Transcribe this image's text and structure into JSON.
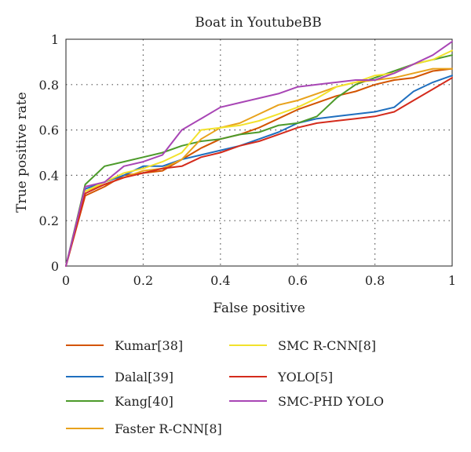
{
  "chart_data": {
    "type": "line",
    "title": "Boat in YoutubeBB",
    "xlabel": "False positive",
    "ylabel": "True positive rate",
    "xlim": [
      0,
      1
    ],
    "ylim": [
      0,
      1
    ],
    "xticks": [
      "0",
      "0.2",
      "0.4",
      "0.6",
      "0.8",
      "1"
    ],
    "yticks": [
      "0",
      "0.2",
      "0.4",
      "0.6",
      "0.8",
      "1"
    ],
    "grid": true,
    "legend_position": "bottom",
    "series": [
      {
        "name": "Kumar[38]",
        "color": "#d35400",
        "points": [
          [
            0,
            0
          ],
          [
            0.05,
            0.31
          ],
          [
            0.1,
            0.35
          ],
          [
            0.15,
            0.4
          ],
          [
            0.2,
            0.41
          ],
          [
            0.25,
            0.42
          ],
          [
            0.3,
            0.47
          ],
          [
            0.35,
            0.52
          ],
          [
            0.4,
            0.56
          ],
          [
            0.45,
            0.58
          ],
          [
            0.5,
            0.61
          ],
          [
            0.55,
            0.65
          ],
          [
            0.6,
            0.69
          ],
          [
            0.65,
            0.72
          ],
          [
            0.7,
            0.75
          ],
          [
            0.75,
            0.77
          ],
          [
            0.8,
            0.8
          ],
          [
            0.85,
            0.82
          ],
          [
            0.9,
            0.83
          ],
          [
            0.95,
            0.86
          ],
          [
            1.0,
            0.87
          ]
        ]
      },
      {
        "name": "Dalal[39]",
        "color": "#1f6fbf",
        "points": [
          [
            0,
            0
          ],
          [
            0.05,
            0.34
          ],
          [
            0.1,
            0.37
          ],
          [
            0.15,
            0.4
          ],
          [
            0.2,
            0.44
          ],
          [
            0.25,
            0.44
          ],
          [
            0.3,
            0.47
          ],
          [
            0.35,
            0.49
          ],
          [
            0.4,
            0.51
          ],
          [
            0.45,
            0.53
          ],
          [
            0.5,
            0.56
          ],
          [
            0.55,
            0.59
          ],
          [
            0.6,
            0.63
          ],
          [
            0.65,
            0.65
          ],
          [
            0.7,
            0.66
          ],
          [
            0.75,
            0.67
          ],
          [
            0.8,
            0.68
          ],
          [
            0.85,
            0.7
          ],
          [
            0.9,
            0.77
          ],
          [
            0.95,
            0.81
          ],
          [
            1.0,
            0.84
          ]
        ]
      },
      {
        "name": "Kang[40]",
        "color": "#4c9a2a",
        "points": [
          [
            0,
            0
          ],
          [
            0.05,
            0.36
          ],
          [
            0.1,
            0.44
          ],
          [
            0.15,
            0.46
          ],
          [
            0.2,
            0.48
          ],
          [
            0.25,
            0.5
          ],
          [
            0.3,
            0.53
          ],
          [
            0.35,
            0.55
          ],
          [
            0.4,
            0.56
          ],
          [
            0.45,
            0.58
          ],
          [
            0.5,
            0.59
          ],
          [
            0.55,
            0.62
          ],
          [
            0.6,
            0.63
          ],
          [
            0.65,
            0.66
          ],
          [
            0.7,
            0.74
          ],
          [
            0.75,
            0.8
          ],
          [
            0.8,
            0.83
          ],
          [
            0.85,
            0.86
          ],
          [
            0.9,
            0.89
          ],
          [
            0.95,
            0.91
          ],
          [
            1.0,
            0.93
          ]
        ]
      },
      {
        "name": "Faster R-CNN[8]",
        "color": "#e8a21c",
        "points": [
          [
            0,
            0
          ],
          [
            0.05,
            0.33
          ],
          [
            0.1,
            0.36
          ],
          [
            0.15,
            0.39
          ],
          [
            0.2,
            0.42
          ],
          [
            0.25,
            0.43
          ],
          [
            0.3,
            0.47
          ],
          [
            0.35,
            0.56
          ],
          [
            0.4,
            0.61
          ],
          [
            0.45,
            0.63
          ],
          [
            0.5,
            0.67
          ],
          [
            0.55,
            0.71
          ],
          [
            0.6,
            0.73
          ],
          [
            0.65,
            0.76
          ],
          [
            0.7,
            0.79
          ],
          [
            0.75,
            0.81
          ],
          [
            0.8,
            0.82
          ],
          [
            0.85,
            0.83
          ],
          [
            0.9,
            0.85
          ],
          [
            0.95,
            0.87
          ],
          [
            1.0,
            0.87
          ]
        ]
      },
      {
        "name": "SMC R-CNN[8]",
        "color": "#f2e22c",
        "points": [
          [
            0,
            0
          ],
          [
            0.05,
            0.33
          ],
          [
            0.1,
            0.37
          ],
          [
            0.15,
            0.41
          ],
          [
            0.2,
            0.43
          ],
          [
            0.25,
            0.46
          ],
          [
            0.3,
            0.5
          ],
          [
            0.35,
            0.6
          ],
          [
            0.4,
            0.61
          ],
          [
            0.45,
            0.62
          ],
          [
            0.5,
            0.64
          ],
          [
            0.55,
            0.67
          ],
          [
            0.6,
            0.7
          ],
          [
            0.65,
            0.74
          ],
          [
            0.7,
            0.79
          ],
          [
            0.75,
            0.81
          ],
          [
            0.8,
            0.84
          ],
          [
            0.85,
            0.85
          ],
          [
            0.9,
            0.89
          ],
          [
            0.95,
            0.91
          ],
          [
            1.0,
            0.95
          ]
        ]
      },
      {
        "name": "YOLO[5]",
        "color": "#d42b1c",
        "points": [
          [
            0,
            0
          ],
          [
            0.05,
            0.32
          ],
          [
            0.1,
            0.36
          ],
          [
            0.15,
            0.39
          ],
          [
            0.2,
            0.41
          ],
          [
            0.25,
            0.43
          ],
          [
            0.3,
            0.44
          ],
          [
            0.35,
            0.48
          ],
          [
            0.4,
            0.5
          ],
          [
            0.45,
            0.53
          ],
          [
            0.5,
            0.55
          ],
          [
            0.55,
            0.58
          ],
          [
            0.6,
            0.61
          ],
          [
            0.65,
            0.63
          ],
          [
            0.7,
            0.64
          ],
          [
            0.75,
            0.65
          ],
          [
            0.8,
            0.66
          ],
          [
            0.85,
            0.68
          ],
          [
            0.9,
            0.73
          ],
          [
            0.95,
            0.78
          ],
          [
            1.0,
            0.83
          ]
        ]
      },
      {
        "name": "SMC-PHD YOLO",
        "color": "#a845b5",
        "points": [
          [
            0,
            0
          ],
          [
            0.05,
            0.35
          ],
          [
            0.1,
            0.37
          ],
          [
            0.15,
            0.44
          ],
          [
            0.2,
            0.46
          ],
          [
            0.25,
            0.49
          ],
          [
            0.3,
            0.6
          ],
          [
            0.35,
            0.65
          ],
          [
            0.4,
            0.7
          ],
          [
            0.45,
            0.72
          ],
          [
            0.5,
            0.74
          ],
          [
            0.55,
            0.76
          ],
          [
            0.6,
            0.79
          ],
          [
            0.65,
            0.8
          ],
          [
            0.7,
            0.81
          ],
          [
            0.75,
            0.82
          ],
          [
            0.8,
            0.82
          ],
          [
            0.85,
            0.85
          ],
          [
            0.9,
            0.89
          ],
          [
            0.95,
            0.93
          ],
          [
            1.0,
            0.99
          ]
        ]
      }
    ]
  }
}
